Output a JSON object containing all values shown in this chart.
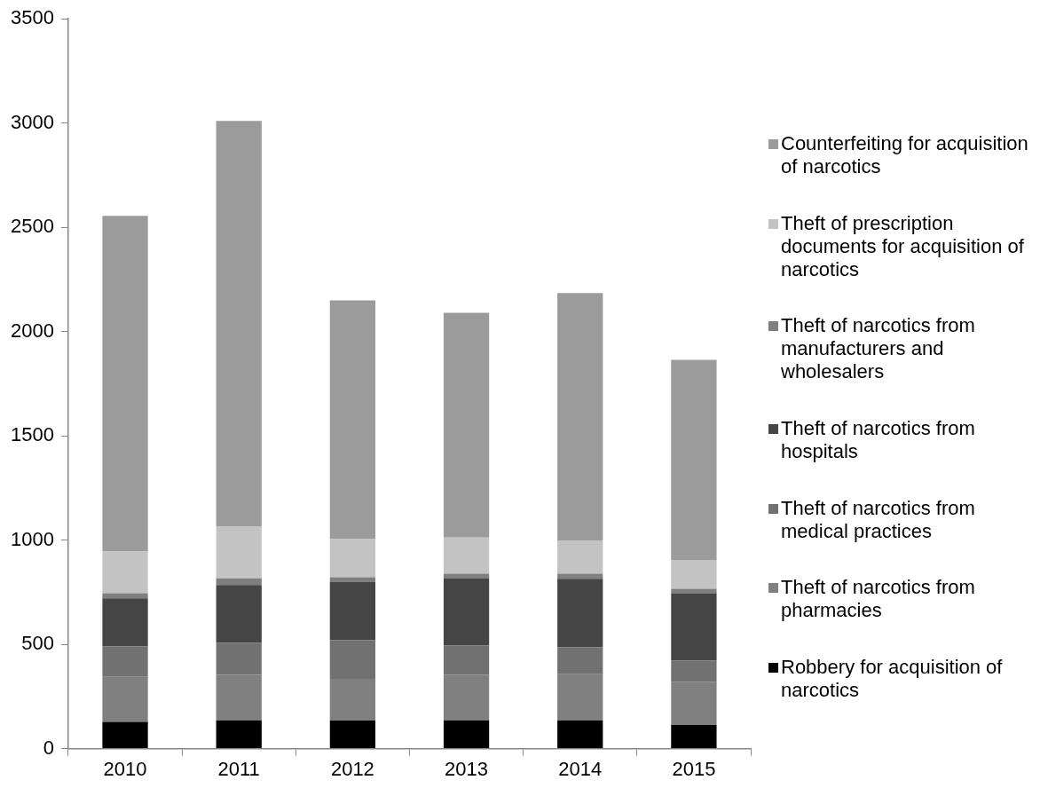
{
  "chart_data": {
    "type": "bar",
    "stacked": true,
    "categories": [
      "2010",
      "2011",
      "2012",
      "2013",
      "2014",
      "2015"
    ],
    "ylim": [
      0,
      3500
    ],
    "yticks": [
      0,
      500,
      1000,
      1500,
      2000,
      2500,
      3000,
      3500
    ],
    "grid": false,
    "legend": "right",
    "series": [
      {
        "name": "Robbery for acquisition of narcotics",
        "color": "#000000",
        "values": [
          128,
          136,
          134,
          136,
          136,
          113
        ]
      },
      {
        "name": "Theft of narcotics from pharmacies",
        "color": "#808080",
        "values": [
          216,
          218,
          201,
          219,
          221,
          208
        ]
      },
      {
        "name": "Theft of narcotics from medical practices",
        "color": "#717171",
        "values": [
          146,
          154,
          186,
          140,
          130,
          102
        ]
      },
      {
        "name": "Theft of narcotics from hospitals",
        "color": "#454545",
        "values": [
          231,
          277,
          280,
          323,
          327,
          322
        ]
      },
      {
        "name": "Theft of narcotics from manufacturers and wholesalers",
        "color": "#7f7f7f",
        "values": [
          24,
          32,
          21,
          21,
          25,
          22
        ]
      },
      {
        "name": "Theft of prescription documents for acquisition of narcotics",
        "color": "#c3c3c3",
        "values": [
          200,
          249,
          183,
          173,
          159,
          138
        ]
      },
      {
        "name": "Counterfeiting for acquisition of narcotics",
        "color": "#9b9b9b",
        "values": [
          1610,
          1944,
          1145,
          1078,
          1187,
          960
        ]
      }
    ]
  }
}
